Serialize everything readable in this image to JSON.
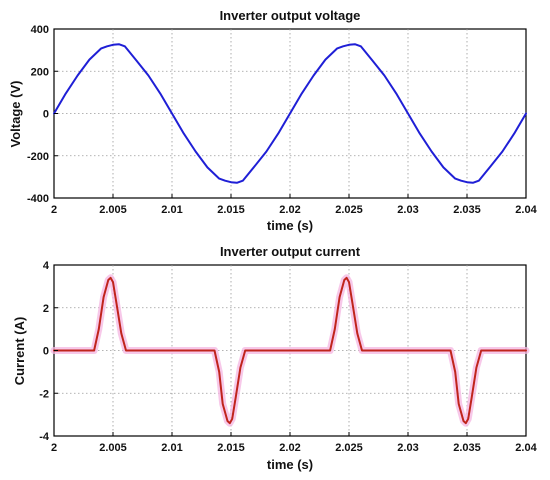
{
  "chart_data": [
    {
      "type": "line",
      "title": "Inverter output voltage",
      "xlabel": "time (s)",
      "ylabel": "Voltage (V)",
      "xlim": [
        2.0,
        2.04
      ],
      "ylim": [
        -400,
        400
      ],
      "xticks": [
        2.0,
        2.005,
        2.01,
        2.015,
        2.02,
        2.025,
        2.03,
        2.035,
        2.04
      ],
      "xtick_labels": [
        "2",
        "2.005",
        "2.01",
        "2.015",
        "2.02",
        "2.025",
        "2.03",
        "2.035",
        "2.04"
      ],
      "yticks": [
        -400,
        -200,
        0,
        200,
        400
      ],
      "ytick_labels": [
        "-400",
        "-200",
        "0",
        "200",
        "400"
      ],
      "grid": true,
      "series": [
        {
          "color": "#1f1fd6",
          "x": [
            2.0,
            2.001,
            2.002,
            2.003,
            2.004,
            2.0045,
            2.005,
            2.0055,
            2.006,
            2.007,
            2.008,
            2.009,
            2.01,
            2.011,
            2.012,
            2.013,
            2.014,
            2.0145,
            2.015,
            2.0155,
            2.016,
            2.017,
            2.018,
            2.019,
            2.02,
            2.021,
            2.022,
            2.023,
            2.024,
            2.0245,
            2.025,
            2.0255,
            2.026,
            2.027,
            2.028,
            2.029,
            2.03,
            2.031,
            2.032,
            2.033,
            2.034,
            2.0345,
            2.035,
            2.0355,
            2.036,
            2.037,
            2.038,
            2.039,
            2.04
          ],
          "y": [
            0,
            95,
            180,
            255,
            308,
            318,
            325,
            328,
            318,
            250,
            180,
            95,
            0,
            -95,
            -180,
            -255,
            -308,
            -318,
            -325,
            -328,
            -318,
            -250,
            -180,
            -95,
            0,
            95,
            180,
            255,
            308,
            318,
            325,
            328,
            318,
            250,
            180,
            95,
            0,
            -95,
            -180,
            -255,
            -308,
            -318,
            -325,
            -328,
            -318,
            -250,
            -180,
            -95,
            0
          ]
        }
      ]
    },
    {
      "type": "line",
      "title": "Inverter output current",
      "xlabel": "time (s)",
      "ylabel": "Current (A)",
      "xlim": [
        2.0,
        2.04
      ],
      "ylim": [
        -4,
        4
      ],
      "xticks": [
        2.0,
        2.005,
        2.01,
        2.015,
        2.02,
        2.025,
        2.03,
        2.035,
        2.04
      ],
      "xtick_labels": [
        "2",
        "2.005",
        "2.01",
        "2.015",
        "2.02",
        "2.025",
        "2.03",
        "2.035",
        "2.04"
      ],
      "yticks": [
        -4,
        -2,
        0,
        2,
        4
      ],
      "ytick_labels": [
        "-4",
        "-2",
        "0",
        "2",
        "4"
      ],
      "grid": true,
      "series": [
        {
          "color": "#c0241c",
          "halo_color": "#f4b6e2",
          "x": [
            2.0,
            2.0034,
            2.0038,
            2.0042,
            2.0046,
            2.0048,
            2.005,
            2.0053,
            2.0057,
            2.0061,
            2.0136,
            2.014,
            2.0143,
            2.0147,
            2.0149,
            2.0151,
            2.0154,
            2.0158,
            2.0162,
            2.0234,
            2.0238,
            2.0242,
            2.0246,
            2.0248,
            2.025,
            2.0253,
            2.0257,
            2.0261,
            2.0336,
            2.034,
            2.0343,
            2.0347,
            2.0349,
            2.0351,
            2.0354,
            2.0358,
            2.0362,
            2.04
          ],
          "y": [
            0,
            0,
            1.0,
            2.5,
            3.3,
            3.4,
            3.2,
            2.2,
            0.8,
            0,
            0,
            -1.0,
            -2.5,
            -3.3,
            -3.4,
            -3.2,
            -2.2,
            -0.8,
            0,
            0,
            1.0,
            2.5,
            3.3,
            3.4,
            3.2,
            2.2,
            0.8,
            0,
            0,
            -1.0,
            -2.5,
            -3.3,
            -3.4,
            -3.2,
            -2.2,
            -0.8,
            0,
            0
          ]
        }
      ]
    }
  ]
}
